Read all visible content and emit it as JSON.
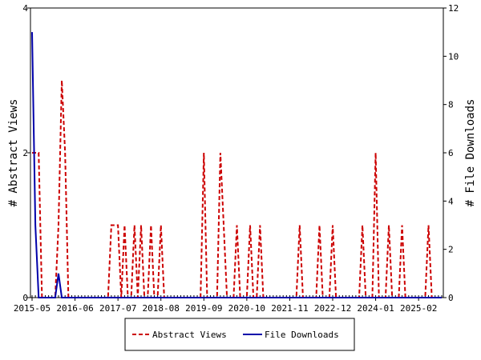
{
  "chart_data": {
    "type": "line",
    "xlabel": "",
    "ylabel_left": "# Abstract Views",
    "ylabel_right": "# File Downloads",
    "x_tick_labels": [
      "2015-05",
      "2016-06",
      "2017-07",
      "2018-08",
      "2019-09",
      "2020-10",
      "2021-11",
      "2022-12",
      "2024-01",
      "2025-02"
    ],
    "x_range_months": [
      "2015-05",
      "2025-09"
    ],
    "y_left_ticks": [
      "0",
      "2",
      "4"
    ],
    "y_left_range": [
      0,
      4
    ],
    "y_right_ticks": [
      "0",
      "2",
      "4",
      "6",
      "8",
      "10",
      "12"
    ],
    "y_right_range": [
      0,
      12
    ],
    "grid": false,
    "legend_position": "bottom",
    "series": [
      {
        "name": "Abstract Views",
        "axis": "left",
        "color": "#cc0000",
        "style": "dashed",
        "points": [
          [
            "2015-05",
            2
          ],
          [
            "2015-06",
            2
          ],
          [
            "2015-07",
            2
          ],
          [
            "2015-08",
            0
          ],
          [
            "2015-09",
            0
          ],
          [
            "2015-10",
            0
          ],
          [
            "2015-11",
            0
          ],
          [
            "2015-12",
            0
          ],
          [
            "2016-01",
            1
          ],
          [
            "2016-02",
            3
          ],
          [
            "2016-03",
            2
          ],
          [
            "2016-04",
            0
          ],
          [
            "2016-05",
            0
          ],
          [
            "2016-06",
            0
          ],
          [
            "2016-07",
            0
          ],
          [
            "2016-08",
            0
          ],
          [
            "2016-09",
            0
          ],
          [
            "2016-10",
            0
          ],
          [
            "2016-11",
            0
          ],
          [
            "2016-12",
            0
          ],
          [
            "2017-01",
            0
          ],
          [
            "2017-02",
            0
          ],
          [
            "2017-03",
            0
          ],
          [
            "2017-04",
            0
          ],
          [
            "2017-05",
            1
          ],
          [
            "2017-06",
            1
          ],
          [
            "2017-07",
            1
          ],
          [
            "2017-08",
            0
          ],
          [
            "2017-09",
            1
          ],
          [
            "2017-10",
            0
          ],
          [
            "2017-11",
            0
          ],
          [
            "2017-12",
            1
          ],
          [
            "2018-01",
            0
          ],
          [
            "2018-02",
            1
          ],
          [
            "2018-03",
            0
          ],
          [
            "2018-04",
            0
          ],
          [
            "2018-05",
            1
          ],
          [
            "2018-06",
            0
          ],
          [
            "2018-07",
            0
          ],
          [
            "2018-08",
            1
          ],
          [
            "2018-09",
            0
          ],
          [
            "2018-10",
            0
          ],
          [
            "2018-11",
            0
          ],
          [
            "2018-12",
            0
          ],
          [
            "2019-01",
            0
          ],
          [
            "2019-02",
            0
          ],
          [
            "2019-03",
            0
          ],
          [
            "2019-04",
            0
          ],
          [
            "2019-05",
            0
          ],
          [
            "2019-06",
            0
          ],
          [
            "2019-07",
            0
          ],
          [
            "2019-08",
            0
          ],
          [
            "2019-09",
            2
          ],
          [
            "2019-10",
            0
          ],
          [
            "2019-11",
            0
          ],
          [
            "2019-12",
            0
          ],
          [
            "2020-01",
            0
          ],
          [
            "2020-02",
            2
          ],
          [
            "2020-03",
            1
          ],
          [
            "2020-04",
            0
          ],
          [
            "2020-05",
            0
          ],
          [
            "2020-06",
            0
          ],
          [
            "2020-07",
            1
          ],
          [
            "2020-08",
            0
          ],
          [
            "2020-09",
            0
          ],
          [
            "2020-10",
            0
          ],
          [
            "2020-11",
            1
          ],
          [
            "2020-12",
            0
          ],
          [
            "2021-01",
            0
          ],
          [
            "2021-02",
            1
          ],
          [
            "2021-03",
            0
          ],
          [
            "2021-04",
            0
          ],
          [
            "2021-05",
            0
          ],
          [
            "2021-06",
            0
          ],
          [
            "2021-07",
            0
          ],
          [
            "2021-08",
            0
          ],
          [
            "2021-09",
            0
          ],
          [
            "2021-10",
            0
          ],
          [
            "2021-11",
            0
          ],
          [
            "2021-12",
            0
          ],
          [
            "2022-01",
            0
          ],
          [
            "2022-02",
            1
          ],
          [
            "2022-03",
            0
          ],
          [
            "2022-04",
            0
          ],
          [
            "2022-05",
            0
          ],
          [
            "2022-06",
            0
          ],
          [
            "2022-07",
            0
          ],
          [
            "2022-08",
            1
          ],
          [
            "2022-09",
            0
          ],
          [
            "2022-10",
            0
          ],
          [
            "2022-11",
            0
          ],
          [
            "2022-12",
            1
          ],
          [
            "2023-01",
            0
          ],
          [
            "2023-02",
            0
          ],
          [
            "2023-03",
            0
          ],
          [
            "2023-04",
            0
          ],
          [
            "2023-05",
            0
          ],
          [
            "2023-06",
            0
          ],
          [
            "2023-07",
            0
          ],
          [
            "2023-08",
            0
          ],
          [
            "2023-09",
            1
          ],
          [
            "2023-10",
            0
          ],
          [
            "2023-11",
            0
          ],
          [
            "2023-12",
            0
          ],
          [
            "2024-01",
            2
          ],
          [
            "2024-02",
            0
          ],
          [
            "2024-03",
            0
          ],
          [
            "2024-04",
            0
          ],
          [
            "2024-05",
            1
          ],
          [
            "2024-06",
            0
          ],
          [
            "2024-07",
            0
          ],
          [
            "2024-08",
            0
          ],
          [
            "2024-09",
            1
          ],
          [
            "2024-10",
            0
          ],
          [
            "2024-11",
            0
          ],
          [
            "2024-12",
            0
          ],
          [
            "2025-01",
            0
          ],
          [
            "2025-02",
            0
          ],
          [
            "2025-03",
            0
          ],
          [
            "2025-04",
            0
          ],
          [
            "2025-05",
            1
          ],
          [
            "2025-06",
            0
          ],
          [
            "2025-07",
            0
          ],
          [
            "2025-08",
            0
          ],
          [
            "2025-09",
            0
          ]
        ]
      },
      {
        "name": "File Downloads",
        "axis": "right",
        "color": "#0000aa",
        "style": "solid",
        "points": [
          [
            "2015-05",
            11
          ],
          [
            "2015-06",
            3
          ],
          [
            "2015-07",
            0
          ],
          [
            "2015-08",
            0
          ],
          [
            "2015-09",
            0
          ],
          [
            "2015-10",
            0
          ],
          [
            "2015-11",
            0
          ],
          [
            "2015-12",
            0
          ],
          [
            "2016-01",
            1
          ],
          [
            "2016-02",
            0
          ],
          [
            "2016-03",
            0
          ],
          [
            "2016-04",
            0
          ],
          [
            "2016-05",
            0
          ],
          [
            "2016-06",
            0
          ],
          [
            "2016-07",
            0
          ],
          [
            "2016-08",
            0
          ],
          [
            "2016-09",
            0
          ],
          [
            "2016-10",
            0
          ],
          [
            "2016-11",
            0
          ],
          [
            "2016-12",
            0
          ],
          [
            "2017-01",
            0
          ],
          [
            "2017-02",
            0
          ],
          [
            "2017-03",
            0
          ],
          [
            "2017-04",
            0
          ],
          [
            "2017-05",
            0
          ],
          [
            "2017-06",
            0
          ],
          [
            "2017-07",
            0
          ],
          [
            "2017-08",
            0
          ],
          [
            "2017-09",
            0
          ],
          [
            "2017-10",
            0
          ],
          [
            "2017-11",
            0
          ],
          [
            "2017-12",
            0
          ],
          [
            "2018-01",
            0
          ],
          [
            "2018-02",
            0
          ],
          [
            "2018-03",
            0
          ],
          [
            "2018-04",
            0
          ],
          [
            "2018-05",
            0
          ],
          [
            "2018-06",
            0
          ],
          [
            "2018-07",
            0
          ],
          [
            "2018-08",
            0
          ],
          [
            "2018-09",
            0
          ],
          [
            "2018-10",
            0
          ],
          [
            "2018-11",
            0
          ],
          [
            "2018-12",
            0
          ],
          [
            "2019-01",
            0
          ],
          [
            "2019-02",
            0
          ],
          [
            "2019-03",
            0
          ],
          [
            "2019-04",
            0
          ],
          [
            "2019-05",
            0
          ],
          [
            "2019-06",
            0
          ],
          [
            "2019-07",
            0
          ],
          [
            "2019-08",
            0
          ],
          [
            "2019-09",
            0
          ],
          [
            "2019-10",
            0
          ],
          [
            "2019-11",
            0
          ],
          [
            "2019-12",
            0
          ],
          [
            "2020-01",
            0
          ],
          [
            "2020-02",
            0
          ],
          [
            "2020-03",
            0
          ],
          [
            "2020-04",
            0
          ],
          [
            "2020-05",
            0
          ],
          [
            "2020-06",
            0
          ],
          [
            "2020-07",
            0
          ],
          [
            "2020-08",
            0
          ],
          [
            "2020-09",
            0
          ],
          [
            "2020-10",
            0
          ],
          [
            "2020-11",
            0
          ],
          [
            "2020-12",
            0
          ],
          [
            "2021-01",
            0
          ],
          [
            "2021-02",
            0
          ],
          [
            "2021-03",
            0
          ],
          [
            "2021-04",
            0
          ],
          [
            "2021-05",
            0
          ],
          [
            "2021-06",
            0
          ],
          [
            "2021-07",
            0
          ],
          [
            "2021-08",
            0
          ],
          [
            "2021-09",
            0
          ],
          [
            "2021-10",
            0
          ],
          [
            "2021-11",
            0
          ],
          [
            "2021-12",
            0
          ],
          [
            "2022-01",
            0
          ],
          [
            "2022-02",
            0
          ],
          [
            "2022-03",
            0
          ],
          [
            "2022-04",
            0
          ],
          [
            "2022-05",
            0
          ],
          [
            "2022-06",
            0
          ],
          [
            "2022-07",
            0
          ],
          [
            "2022-08",
            0
          ],
          [
            "2022-09",
            0
          ],
          [
            "2022-10",
            0
          ],
          [
            "2022-11",
            0
          ],
          [
            "2022-12",
            0
          ],
          [
            "2023-01",
            0
          ],
          [
            "2023-02",
            0
          ],
          [
            "2023-03",
            0
          ],
          [
            "2023-04",
            0
          ],
          [
            "2023-05",
            0
          ],
          [
            "2023-06",
            0
          ],
          [
            "2023-07",
            0
          ],
          [
            "2023-08",
            0
          ],
          [
            "2023-09",
            0
          ],
          [
            "2023-10",
            0
          ],
          [
            "2023-11",
            0
          ],
          [
            "2023-12",
            0
          ],
          [
            "2024-01",
            0
          ],
          [
            "2024-02",
            0
          ],
          [
            "2024-03",
            0
          ],
          [
            "2024-04",
            0
          ],
          [
            "2024-05",
            0
          ],
          [
            "2024-06",
            0
          ],
          [
            "2024-07",
            0
          ],
          [
            "2024-08",
            0
          ],
          [
            "2024-09",
            0
          ],
          [
            "2024-10",
            0
          ],
          [
            "2024-11",
            0
          ],
          [
            "2024-12",
            0
          ],
          [
            "2025-01",
            0
          ],
          [
            "2025-02",
            0
          ],
          [
            "2025-03",
            0
          ],
          [
            "2025-04",
            0
          ],
          [
            "2025-05",
            0
          ],
          [
            "2025-06",
            0
          ],
          [
            "2025-07",
            0
          ],
          [
            "2025-08",
            0
          ],
          [
            "2025-09",
            0
          ]
        ]
      }
    ]
  }
}
